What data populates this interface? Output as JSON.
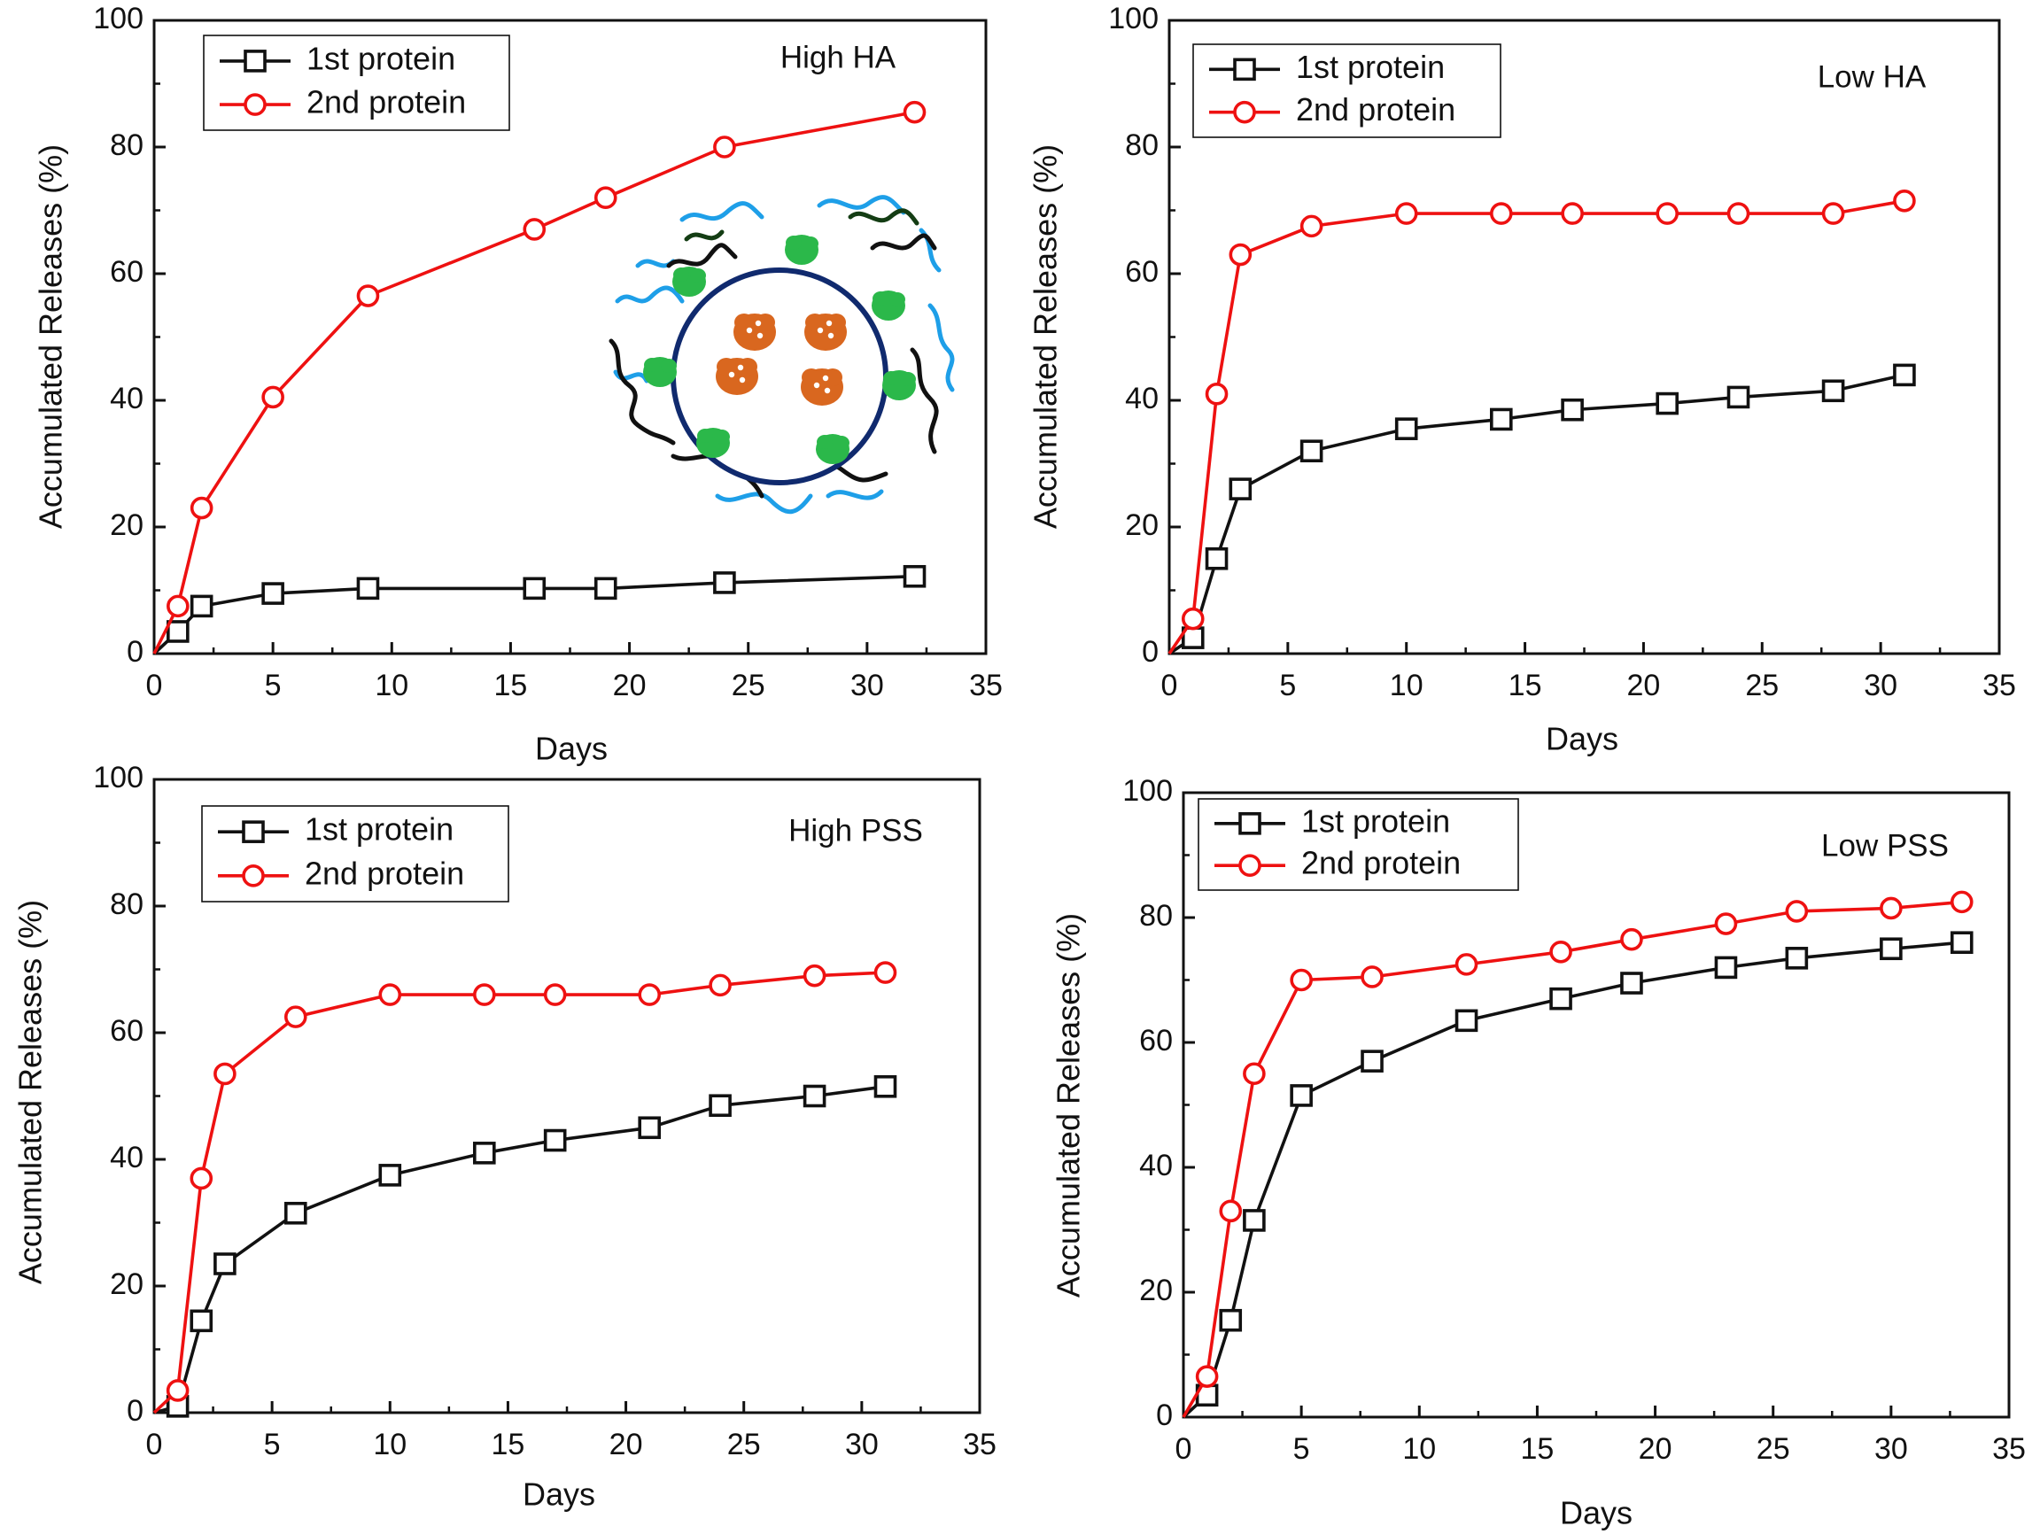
{
  "colors": {
    "first_series": "#111111",
    "second_series": "#ee1111",
    "axis": "#111111",
    "background": "#ffffff",
    "inset_shell": "#102a6e",
    "inset_green": "#2bb84a",
    "inset_orange": "#d9671f",
    "inset_blue": "#1e9fe8",
    "inset_black": "#111111",
    "inset_darkgreen": "#143d14"
  },
  "chart_data": [
    {
      "type": "line",
      "title": "High HA",
      "xlabel": "Days",
      "ylabel": "Accumulated Releases (%)",
      "xlim": [
        0,
        35
      ],
      "ylim": [
        0,
        100
      ],
      "xticks": [
        "0",
        "5",
        "10",
        "15",
        "20",
        "25",
        "30",
        "35"
      ],
      "yticks": [
        "0",
        "20",
        "40",
        "60",
        "80",
        "100"
      ],
      "legend_position": "top-left",
      "inset": "nanoparticle schematic",
      "series": [
        {
          "name": "1st protein",
          "marker": "square",
          "x": [
            0,
            1,
            2,
            5,
            9,
            16,
            19,
            24,
            32
          ],
          "y": [
            0,
            3.5,
            7.5,
            9.5,
            10.3,
            10.3,
            10.3,
            11.2,
            12.2
          ]
        },
        {
          "name": "2nd protein",
          "marker": "circle",
          "x": [
            0,
            1,
            2,
            5,
            9,
            16,
            19,
            24,
            32
          ],
          "y": [
            0,
            7.5,
            23,
            40.5,
            56.5,
            67,
            72,
            80,
            85.5
          ]
        }
      ]
    },
    {
      "type": "line",
      "title": "Low HA",
      "xlabel": "Days",
      "ylabel": "Accumulated Releases (%)",
      "xlim": [
        0,
        35
      ],
      "ylim": [
        0,
        100
      ],
      "xticks": [
        "0",
        "5",
        "10",
        "15",
        "20",
        "25",
        "30",
        "35"
      ],
      "yticks": [
        "0",
        "20",
        "40",
        "60",
        "80",
        "100"
      ],
      "legend_position": "top-left",
      "series": [
        {
          "name": "1st protein",
          "marker": "square",
          "x": [
            0,
            1,
            2,
            3,
            6,
            10,
            14,
            17,
            21,
            24,
            28,
            31
          ],
          "y": [
            0,
            2.5,
            15,
            26,
            32,
            35.5,
            37,
            38.5,
            39.5,
            40.5,
            41.5,
            44
          ]
        },
        {
          "name": "2nd protein",
          "marker": "circle",
          "x": [
            0,
            1,
            2,
            3,
            6,
            10,
            14,
            17,
            21,
            24,
            28,
            31
          ],
          "y": [
            0,
            5.5,
            41,
            63,
            67.5,
            69.5,
            69.5,
            69.5,
            69.5,
            69.5,
            69.5,
            71.5
          ]
        }
      ]
    },
    {
      "type": "line",
      "title": "High PSS",
      "xlabel": "Days",
      "ylabel": "Accumulated Releases (%)",
      "xlim": [
        0,
        35
      ],
      "ylim": [
        0,
        100
      ],
      "xticks": [
        "0",
        "5",
        "10",
        "15",
        "20",
        "25",
        "30",
        "35"
      ],
      "yticks": [
        "0",
        "20",
        "40",
        "60",
        "80",
        "100"
      ],
      "legend_position": "top-left",
      "series": [
        {
          "name": "1st protein",
          "marker": "square",
          "x": [
            0,
            1,
            2,
            3,
            6,
            10,
            14,
            17,
            21,
            24,
            28,
            31
          ],
          "y": [
            0,
            1,
            14.5,
            23.5,
            31.5,
            37.5,
            41,
            43,
            45,
            48.5,
            50,
            51.5
          ]
        },
        {
          "name": "2nd protein",
          "marker": "circle",
          "x": [
            0,
            1,
            2,
            3,
            6,
            10,
            14,
            17,
            21,
            24,
            28,
            31
          ],
          "y": [
            0,
            3.5,
            37,
            53.5,
            62.5,
            66,
            66,
            66,
            66,
            67.5,
            69,
            69.5
          ]
        }
      ]
    },
    {
      "type": "line",
      "title": "Low PSS",
      "xlabel": "Days",
      "ylabel": "Accumulated Releases (%)",
      "xlim": [
        0,
        35
      ],
      "ylim": [
        0,
        100
      ],
      "xticks": [
        "0",
        "5",
        "10",
        "15",
        "20",
        "25",
        "30",
        "35"
      ],
      "yticks": [
        "0",
        "20",
        "40",
        "60",
        "80",
        "100"
      ],
      "legend_position": "top-left",
      "series": [
        {
          "name": "1st protein",
          "marker": "square",
          "x": [
            0,
            1,
            2,
            3,
            5,
            8,
            12,
            16,
            19,
            23,
            26,
            30,
            33
          ],
          "y": [
            0,
            3.5,
            15.5,
            31.5,
            51.5,
            57,
            63.5,
            67,
            69.5,
            72,
            73.5,
            75,
            76
          ]
        },
        {
          "name": "2nd protein",
          "marker": "circle",
          "x": [
            0,
            1,
            2,
            3,
            5,
            8,
            12,
            16,
            19,
            23,
            26,
            30,
            33
          ],
          "y": [
            0,
            6.5,
            33,
            55,
            70,
            70.5,
            72.5,
            74.5,
            76.5,
            79,
            81,
            81.5,
            82.5
          ]
        }
      ]
    }
  ]
}
